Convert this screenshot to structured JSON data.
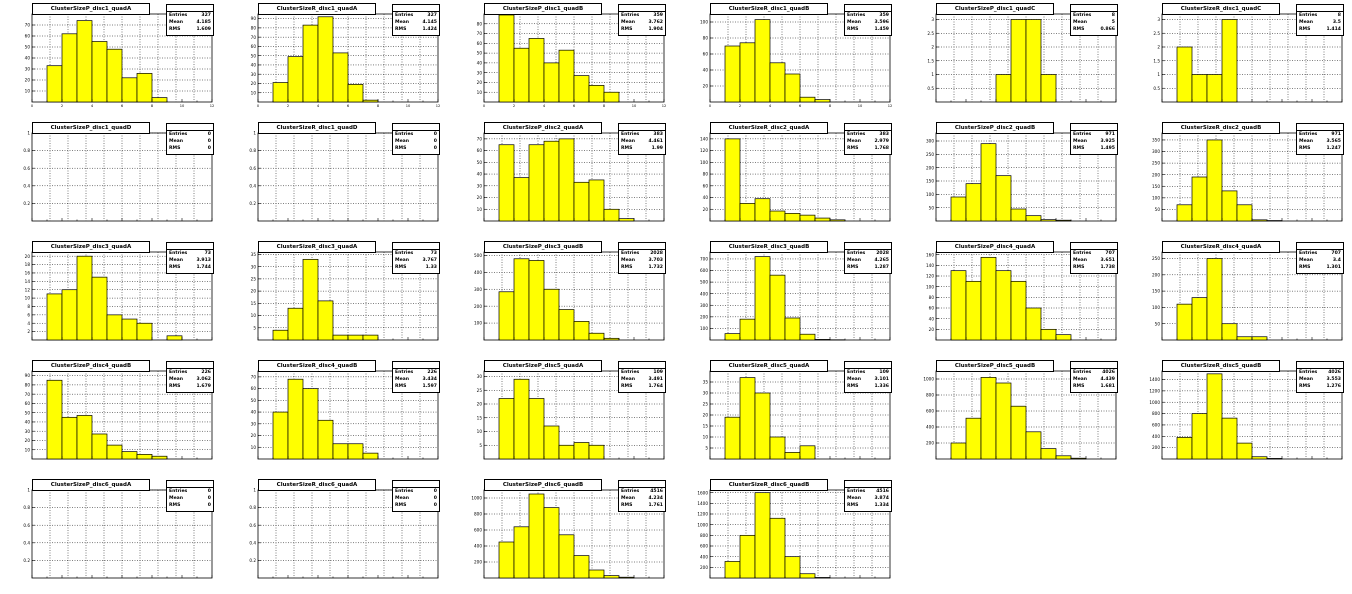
{
  "footer": "",
  "colors": {
    "fill": "#ffff00",
    "stroke": "#000000",
    "grid": "#000000"
  },
  "stats_labels": {
    "entries": "Entries",
    "mean": "Mean",
    "rms": "RMS"
  },
  "chart_data": [
    {
      "type": "bar",
      "title": "ClusterSizeP_disc1_quadA",
      "stats_header": "",
      "entries": "327",
      "mean": "4.185",
      "rms": "1.609",
      "ylim": [
        0,
        80
      ],
      "yticks": [
        10,
        20,
        30,
        40,
        50,
        60,
        70
      ],
      "values": [
        0,
        33,
        62,
        74,
        55,
        48,
        22,
        26,
        4,
        0,
        0,
        0
      ],
      "xticks": [
        0,
        2,
        4,
        6,
        8,
        10,
        12
      ]
    },
    {
      "type": "bar",
      "title": "ClusterSizeR_disc1_quadA",
      "stats_header": "",
      "entries": "327",
      "mean": "4.145",
      "rms": "1.424",
      "ylim": [
        0,
        95
      ],
      "yticks": [
        10,
        20,
        30,
        40,
        50,
        60,
        70,
        80,
        90
      ],
      "values": [
        0,
        21,
        49,
        83,
        92,
        53,
        19,
        2,
        0,
        0,
        0,
        0
      ],
      "xticks": [
        0,
        2,
        4,
        6,
        8,
        10,
        12
      ]
    },
    {
      "type": "bar",
      "title": "ClusterSizeP_disc1_quadB",
      "stats_header": "",
      "entries": "359",
      "mean": "3.762",
      "rms": "1.904",
      "ylim": [
        0,
        90
      ],
      "yticks": [
        10,
        20,
        30,
        40,
        50,
        60,
        70,
        80
      ],
      "values": [
        0,
        89,
        55,
        65,
        40,
        53,
        27,
        17,
        10,
        0,
        0,
        0
      ],
      "xticks": [
        0,
        2,
        4,
        6,
        8,
        10,
        12
      ]
    },
    {
      "type": "bar",
      "title": "ClusterSizeR_disc1_quadB",
      "stats_header": "",
      "entries": "359",
      "mean": "3.596",
      "rms": "1.459",
      "ylim": [
        0,
        110
      ],
      "yticks": [
        20,
        40,
        60,
        80,
        100
      ],
      "values": [
        0,
        70,
        74,
        103,
        49,
        35,
        6,
        3,
        0,
        0,
        0,
        0
      ],
      "xticks": [
        0,
        2,
        4,
        6,
        8,
        10,
        12
      ]
    },
    {
      "type": "bar",
      "title": "ClusterSizeP_disc1_quadC",
      "stats_header": "",
      "entries": "8",
      "mean": "5",
      "rms": "0.866",
      "ylim": [
        0,
        3.2
      ],
      "yticks": [
        0.5,
        1,
        1.5,
        2,
        2.5,
        3
      ],
      "values": [
        0,
        0,
        0,
        0,
        1,
        3,
        3,
        1,
        0,
        0,
        0,
        0
      ],
      "xticks": []
    },
    {
      "type": "bar",
      "title": "ClusterSizeR_disc1_quadC",
      "stats_header": "",
      "entries": "8",
      "mean": "3.5",
      "rms": "1.414",
      "ylim": [
        0,
        3.2
      ],
      "yticks": [
        0.5,
        1,
        1.5,
        2,
        2.5,
        3
      ],
      "values": [
        0,
        2,
        1,
        1,
        3,
        0,
        0,
        0,
        0,
        0,
        0,
        0
      ],
      "xticks": []
    },
    {
      "type": "bar",
      "title": "ClusterSizeP_disc1_quadD",
      "stats_header": "",
      "entries": "0",
      "mean": "0",
      "rms": "0",
      "ylim": [
        0,
        1
      ],
      "yticks": [
        0.2,
        0.4,
        0.6,
        0.8,
        1
      ],
      "values": [
        0,
        0,
        0,
        0,
        0,
        0,
        0,
        0,
        0,
        0,
        0,
        0
      ],
      "xticks": []
    },
    {
      "type": "bar",
      "title": "ClusterSizeR_disc1_quadD",
      "stats_header": "",
      "entries": "0",
      "mean": "0",
      "rms": "0",
      "ylim": [
        0,
        1
      ],
      "yticks": [
        0.2,
        0.4,
        0.6,
        0.8,
        1
      ],
      "values": [
        0,
        0,
        0,
        0,
        0,
        0,
        0,
        0,
        0,
        0,
        0,
        0
      ],
      "xticks": []
    },
    {
      "type": "bar",
      "title": "ClusterSizeP_disc2_quadA",
      "stats_header": "",
      "entries": "383",
      "mean": "4.461",
      "rms": "1.99",
      "ylim": [
        0,
        75
      ],
      "yticks": [
        10,
        20,
        30,
        40,
        50,
        60,
        70
      ],
      "values": [
        0,
        65,
        37,
        65,
        68,
        70,
        33,
        35,
        10,
        2,
        0,
        0
      ],
      "xticks": []
    },
    {
      "type": "bar",
      "title": "ClusterSizeR_disc2_quadA",
      "stats_header": "",
      "entries": "383",
      "mean": "2.979",
      "rms": "1.768",
      "ylim": [
        0,
        150
      ],
      "yticks": [
        20,
        40,
        60,
        80,
        100,
        120,
        140
      ],
      "values": [
        0,
        140,
        30,
        38,
        17,
        13,
        10,
        5,
        2,
        0,
        0,
        0
      ],
      "xticks": []
    },
    {
      "type": "bar",
      "title": "ClusterSizeP_disc2_quadB",
      "stats_header": "",
      "entries": "971",
      "mean": "3.925",
      "rms": "1.495",
      "ylim": [
        0,
        330
      ],
      "yticks": [
        50,
        100,
        150,
        200,
        250,
        300
      ],
      "values": [
        0,
        90,
        140,
        290,
        170,
        45,
        20,
        5,
        3,
        0,
        0,
        0
      ],
      "xticks": []
    },
    {
      "type": "bar",
      "title": "ClusterSizeR_disc2_quadB",
      "stats_header": "",
      "entries": "971",
      "mean": "3.565",
      "rms": "1.247",
      "ylim": [
        0,
        380
      ],
      "yticks": [
        50,
        100,
        150,
        200,
        250,
        300,
        350
      ],
      "values": [
        0,
        70,
        190,
        350,
        130,
        70,
        5,
        2,
        0,
        0,
        0,
        0
      ],
      "xticks": []
    },
    {
      "type": "bar",
      "title": "ClusterSizeP_disc3_quadA",
      "stats_header": "",
      "entries": "73",
      "mean": "3.913",
      "rms": "1.744",
      "ylim": [
        0,
        21
      ],
      "yticks": [
        2,
        4,
        6,
        8,
        10,
        12,
        14,
        16,
        18,
        20
      ],
      "values": [
        0,
        11,
        12,
        20,
        15,
        6,
        5,
        4,
        0,
        1,
        0,
        0
      ],
      "xticks": []
    },
    {
      "type": "bar",
      "title": "ClusterSizeR_disc3_quadA",
      "stats_header": "",
      "entries": "73",
      "mean": "3.767",
      "rms": "1.33",
      "ylim": [
        0,
        36
      ],
      "yticks": [
        5,
        10,
        15,
        20,
        25,
        30,
        35
      ],
      "values": [
        0,
        4,
        13,
        33,
        16,
        2,
        2,
        2,
        0,
        0,
        0,
        0
      ],
      "xticks": []
    },
    {
      "type": "bar",
      "title": "ClusterSizeP_disc3_quadB",
      "stats_header": "",
      "entries": "2028",
      "mean": "3.703",
      "rms": "1.732",
      "ylim": [
        0,
        520
      ],
      "yticks": [
        100,
        200,
        300,
        400,
        500
      ],
      "values": [
        0,
        285,
        480,
        470,
        300,
        180,
        110,
        40,
        10,
        0,
        0,
        0
      ],
      "xticks": []
    },
    {
      "type": "bar",
      "title": "ClusterSizeR_disc3_quadB",
      "stats_header": "",
      "entries": "2028",
      "mean": "4.265",
      "rms": "1.287",
      "ylim": [
        0,
        760
      ],
      "yticks": [
        100,
        200,
        300,
        400,
        500,
        600,
        700
      ],
      "values": [
        0,
        55,
        180,
        720,
        560,
        190,
        50,
        5,
        2,
        0,
        0,
        0
      ],
      "xticks": []
    },
    {
      "type": "bar",
      "title": "ClusterSizeP_disc4_quadA",
      "stats_header": "",
      "entries": "707",
      "mean": "3.651",
      "rms": "1.738",
      "ylim": [
        0,
        165
      ],
      "yticks": [
        20,
        40,
        60,
        80,
        100,
        120,
        140,
        160
      ],
      "values": [
        0,
        130,
        110,
        155,
        130,
        110,
        60,
        20,
        10,
        0,
        0,
        0
      ],
      "xticks": []
    },
    {
      "type": "bar",
      "title": "ClusterSizeR_disc4_quadA",
      "stats_header": "",
      "entries": "707",
      "mean": "3.4",
      "rms": "1.301",
      "ylim": [
        0,
        270
      ],
      "yticks": [
        50,
        100,
        150,
        200,
        250
      ],
      "values": [
        0,
        110,
        130,
        250,
        50,
        10,
        10,
        0,
        0,
        0,
        0,
        0
      ],
      "xticks": []
    },
    {
      "type": "bar",
      "title": "ClusterSizeP_disc4_quadB",
      "stats_header": "",
      "entries": "226",
      "mean": "3.062",
      "rms": "1.679",
      "ylim": [
        0,
        95
      ],
      "yticks": [
        10,
        20,
        30,
        40,
        50,
        60,
        70,
        80,
        90
      ],
      "values": [
        0,
        85,
        45,
        47,
        27,
        15,
        8,
        5,
        3,
        0,
        0,
        0
      ],
      "xticks": []
    },
    {
      "type": "bar",
      "title": "ClusterSizeR_disc4_quadB",
      "stats_header": "",
      "entries": "226",
      "mean": "3.434",
      "rms": "1.597",
      "ylim": [
        0,
        75
      ],
      "yticks": [
        10,
        20,
        30,
        40,
        50,
        60,
        70
      ],
      "values": [
        0,
        40,
        68,
        60,
        33,
        13,
        13,
        5,
        0,
        0,
        0,
        0
      ],
      "xticks": []
    },
    {
      "type": "bar",
      "title": "ClusterSizeP_disc5_quadA",
      "stats_header": "",
      "entries": "109",
      "mean": "3.491",
      "rms": "1.764",
      "ylim": [
        0,
        32
      ],
      "yticks": [
        5,
        10,
        15,
        20,
        25,
        30
      ],
      "values": [
        0,
        22,
        29,
        22,
        12,
        5,
        6,
        5,
        0,
        0,
        0,
        0
      ],
      "xticks": []
    },
    {
      "type": "bar",
      "title": "ClusterSizeR_disc5_quadA",
      "stats_header": "",
      "entries": "109",
      "mean": "3.101",
      "rms": "1.336",
      "ylim": [
        0,
        40
      ],
      "yticks": [
        5,
        10,
        15,
        20,
        25,
        30,
        35
      ],
      "values": [
        0,
        19,
        37,
        30,
        10,
        3,
        6,
        0,
        0,
        0,
        0,
        0
      ],
      "xticks": []
    },
    {
      "type": "bar",
      "title": "ClusterSizeP_disc5_quadB",
      "stats_header": "",
      "entries": "4026",
      "mean": "4.439",
      "rms": "1.681",
      "ylim": [
        0,
        1100
      ],
      "yticks": [
        200,
        400,
        600,
        800,
        1000
      ],
      "values": [
        0,
        200,
        510,
        1020,
        950,
        660,
        340,
        130,
        40,
        10,
        0,
        0
      ],
      "xticks": []
    },
    {
      "type": "bar",
      "title": "ClusterSizeR_disc5_quadB",
      "stats_header": "",
      "entries": "4026",
      "mean": "3.553",
      "rms": "1.276",
      "ylim": [
        0,
        1550
      ],
      "yticks": [
        200,
        400,
        600,
        800,
        1000,
        1200,
        1400
      ],
      "values": [
        0,
        380,
        800,
        1500,
        720,
        280,
        40,
        10,
        0,
        0,
        0,
        0
      ],
      "xticks": []
    },
    {
      "type": "bar",
      "title": "ClusterSizeP_disc6_quadA",
      "stats_header": "",
      "entries": "0",
      "mean": "0",
      "rms": "0",
      "ylim": [
        0,
        1
      ],
      "yticks": [
        0.2,
        0.4,
        0.6,
        0.8,
        1
      ],
      "values": [
        0,
        0,
        0,
        0,
        0,
        0,
        0,
        0,
        0,
        0,
        0,
        0
      ],
      "xticks": []
    },
    {
      "type": "bar",
      "title": "ClusterSizeR_disc6_quadA",
      "stats_header": "",
      "entries": "0",
      "mean": "0",
      "rms": "0",
      "ylim": [
        0,
        1
      ],
      "yticks": [
        0.2,
        0.4,
        0.6,
        0.8,
        1
      ],
      "values": [
        0,
        0,
        0,
        0,
        0,
        0,
        0,
        0,
        0,
        0,
        0,
        0
      ],
      "xticks": []
    },
    {
      "type": "bar",
      "title": "ClusterSizeP_disc6_quadB",
      "stats_header": "",
      "entries": "4516",
      "mean": "4.234",
      "rms": "1.761",
      "ylim": [
        0,
        1100
      ],
      "yticks": [
        200,
        400,
        600,
        800,
        1000
      ],
      "values": [
        0,
        450,
        640,
        1050,
        880,
        540,
        280,
        100,
        30,
        10,
        0,
        0
      ],
      "xticks": []
    },
    {
      "type": "bar",
      "title": "ClusterSizeR_disc6_quadB",
      "stats_header": "",
      "entries": "4516",
      "mean": "3.874",
      "rms": "1.334",
      "ylim": [
        0,
        1650
      ],
      "yticks": [
        200,
        400,
        600,
        800,
        1000,
        1200,
        1400,
        1600
      ],
      "values": [
        0,
        310,
        800,
        1600,
        1120,
        400,
        80,
        10,
        0,
        0,
        0,
        0
      ],
      "xticks": []
    }
  ]
}
